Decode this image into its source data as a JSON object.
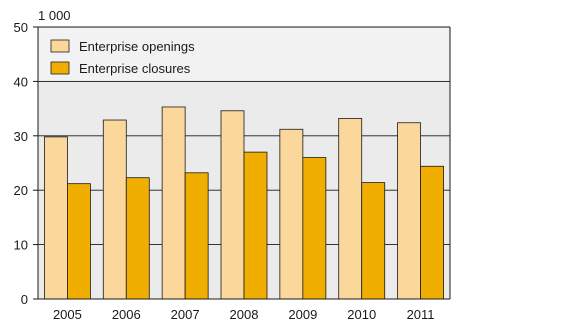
{
  "chart_data": {
    "type": "bar",
    "title": "",
    "xlabel": "",
    "ylabel": "",
    "unit_label": "1 000",
    "categories": [
      "2005",
      "2006",
      "2007",
      "2008",
      "2009",
      "2010",
      "2011"
    ],
    "series": [
      {
        "name": "Enterprise openings",
        "values": [
          29.8,
          32.9,
          35.3,
          34.6,
          31.2,
          33.2,
          32.4
        ],
        "color": "#fbd79b"
      },
      {
        "name": "Enterprise closures",
        "values": [
          21.2,
          22.3,
          23.2,
          27.0,
          26.0,
          21.4,
          24.4
        ],
        "color": "#f0ae00"
      }
    ],
    "ylim": [
      0,
      50
    ],
    "yticks": [
      0,
      10,
      20,
      30,
      40,
      50
    ],
    "grid": true,
    "legend_position": "top-left",
    "plot_background": "#ebebeb",
    "legend_background": "#f2f2f2"
  }
}
